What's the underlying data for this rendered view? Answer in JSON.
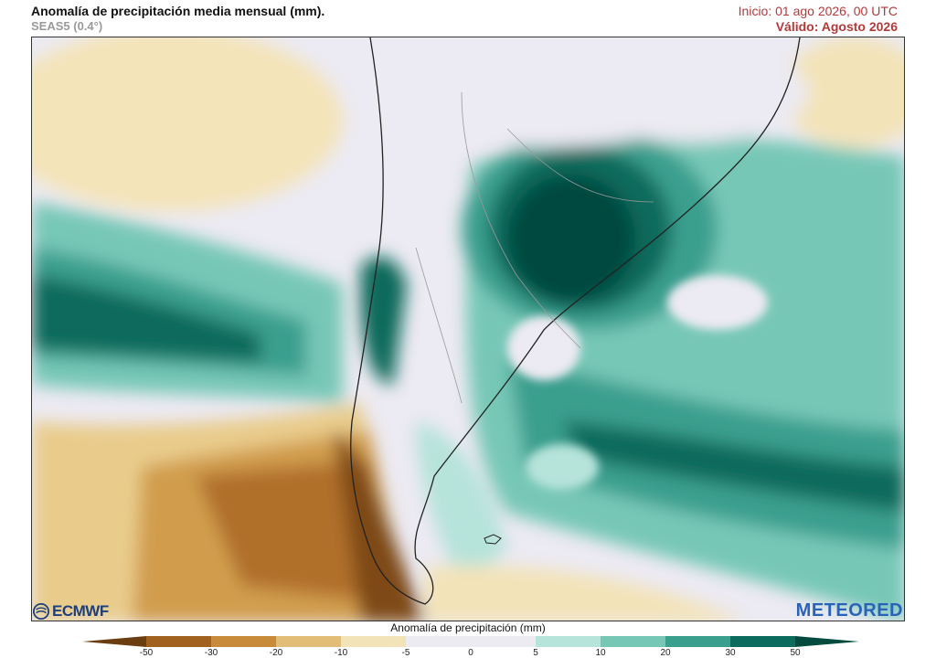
{
  "header": {
    "title": "Anomalía de precipitación media mensual (mm).",
    "model": "SEAS5 (0.4°)",
    "init": "Inicio: 01 ago 2026, 00 UTC",
    "valid": "Válido: Agosto 2026"
  },
  "logos": {
    "left": "ECMWF",
    "right": "METEORED"
  },
  "colorbar": {
    "title": "Anomalía de precipitación (mm)",
    "ticks": [
      "-50",
      "-30",
      "-20",
      "-10",
      "-5",
      "0",
      "5",
      "10",
      "20",
      "30",
      "50"
    ],
    "colors": [
      "#6b3e12",
      "#a0621e",
      "#c88b3a",
      "#e2bd77",
      "#f3e3b8",
      "#ecebf2",
      "#ecebf2",
      "#b6e3da",
      "#77c7b7",
      "#3b9f8e",
      "#0b6b5c",
      "#034a3f"
    ]
  },
  "map": {
    "region": "South America",
    "palette": {
      "land": "#f2f2f2",
      "border": "#999999",
      "coast": "#222222"
    }
  }
}
